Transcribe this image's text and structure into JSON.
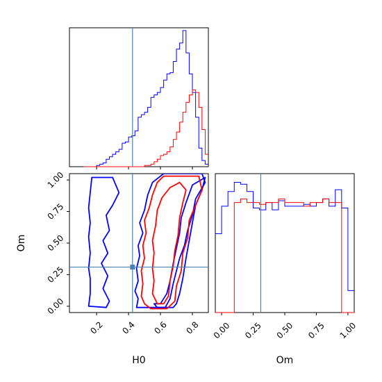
{
  "chart_data": [
    {
      "type": "histogram",
      "panel": "H0 marginal",
      "xlim": [
        0.03,
        0.9
      ],
      "bins": [
        0.12,
        0.14,
        0.16,
        0.18,
        0.2,
        0.22,
        0.24,
        0.26,
        0.28,
        0.3,
        0.32,
        0.34,
        0.36,
        0.38,
        0.4,
        0.42,
        0.44,
        0.46,
        0.48,
        0.5,
        0.52,
        0.54,
        0.56,
        0.58,
        0.6,
        0.62,
        0.64,
        0.66,
        0.68,
        0.7,
        0.72,
        0.74,
        0.76,
        0.78,
        0.8,
        0.82,
        0.84,
        0.86,
        0.88,
        0.9
      ],
      "series": [
        {
          "color": "#0000ff",
          "values": [
            0,
            0,
            0,
            0,
            1,
            2,
            3,
            6,
            8,
            10,
            12,
            14,
            19,
            20,
            24,
            25,
            29,
            40,
            42,
            44,
            48,
            56,
            58,
            60,
            64,
            70,
            75,
            76,
            85,
            95,
            100,
            110,
            92,
            75,
            60,
            40,
            15,
            5,
            2
          ]
        },
        {
          "color": "#ff0000",
          "values": [
            0,
            0,
            0,
            0,
            0,
            0,
            0,
            0,
            0,
            0,
            0,
            0,
            0,
            0,
            0,
            0,
            0,
            0,
            0,
            1,
            1,
            2,
            4,
            6,
            9,
            10,
            12,
            16,
            22,
            28,
            36,
            44,
            52,
            58,
            62,
            60,
            48,
            30,
            10
          ]
        }
      ],
      "truth_x": 0.425
    },
    {
      "type": "contour",
      "panel": "H0 vs Om",
      "xlabel": "H0",
      "ylabel": "Om",
      "xlim": [
        0.03,
        0.9
      ],
      "ylim": [
        -0.05,
        1.05
      ],
      "xticks": [
        "0.2",
        "0.4",
        "0.6",
        "0.8"
      ],
      "xtick_values": [
        0.2,
        0.4,
        0.6,
        0.8
      ],
      "yticks": [
        "0.00",
        "0.25",
        "0.50",
        "0.75",
        "1.00"
      ],
      "ytick_values": [
        0.0,
        0.25,
        0.5,
        0.75,
        1.0
      ],
      "truth": [
        0.425,
        0.31
      ],
      "contours": [
        {
          "color": "#0000ff",
          "points": [
            [
              0.15,
              0.0
            ],
            [
              0.16,
              0.1
            ],
            [
              0.16,
              0.22
            ],
            [
              0.15,
              0.3
            ],
            [
              0.16,
              0.42
            ],
            [
              0.15,
              0.55
            ],
            [
              0.16,
              0.66
            ],
            [
              0.15,
              0.78
            ],
            [
              0.16,
              0.9
            ],
            [
              0.17,
              1.02
            ],
            [
              0.3,
              1.02
            ],
            [
              0.34,
              0.9
            ],
            [
              0.3,
              0.8
            ],
            [
              0.26,
              0.72
            ],
            [
              0.28,
              0.6
            ],
            [
              0.24,
              0.52
            ],
            [
              0.27,
              0.42
            ],
            [
              0.23,
              0.34
            ],
            [
              0.27,
              0.24
            ],
            [
              0.24,
              0.14
            ],
            [
              0.28,
              0.04
            ],
            [
              0.26,
              -0.01
            ]
          ]
        },
        {
          "color": "#0000ff",
          "points": [
            [
              0.45,
              -0.01
            ],
            [
              0.46,
              0.06
            ],
            [
              0.44,
              0.12
            ],
            [
              0.46,
              0.2
            ],
            [
              0.45,
              0.3
            ],
            [
              0.47,
              0.4
            ],
            [
              0.46,
              0.48
            ],
            [
              0.49,
              0.58
            ],
            [
              0.47,
              0.66
            ],
            [
              0.5,
              0.76
            ],
            [
              0.52,
              0.88
            ],
            [
              0.55,
              0.98
            ],
            [
              0.62,
              1.05
            ],
            [
              0.86,
              1.05
            ],
            [
              0.88,
              0.98
            ],
            [
              0.82,
              0.85
            ],
            [
              0.8,
              0.72
            ],
            [
              0.77,
              0.6
            ],
            [
              0.75,
              0.48
            ],
            [
              0.72,
              0.38
            ],
            [
              0.7,
              0.28
            ],
            [
              0.68,
              0.18
            ],
            [
              0.66,
              0.06
            ],
            [
              0.63,
              -0.01
            ]
          ]
        },
        {
          "color": "#0000ff",
          "points": [
            [
              0.56,
              0.02
            ],
            [
              0.6,
              0.02
            ],
            [
              0.64,
              0.1
            ],
            [
              0.66,
              0.2
            ],
            [
              0.68,
              0.34
            ],
            [
              0.7,
              0.46
            ],
            [
              0.72,
              0.58
            ],
            [
              0.73,
              0.7
            ],
            [
              0.76,
              0.82
            ],
            [
              0.8,
              0.96
            ],
            [
              0.88,
              1.02
            ],
            [
              0.86,
              0.92
            ],
            [
              0.82,
              0.8
            ],
            [
              0.8,
              0.66
            ],
            [
              0.78,
              0.52
            ],
            [
              0.76,
              0.38
            ],
            [
              0.74,
              0.22
            ],
            [
              0.72,
              0.1
            ],
            [
              0.7,
              0.02
            ],
            [
              0.68,
              -0.01
            ],
            [
              0.58,
              -0.01
            ]
          ]
        },
        {
          "color": "#ff0000",
          "points": [
            [
              0.48,
              0.08
            ],
            [
              0.49,
              0.18
            ],
            [
              0.48,
              0.28
            ],
            [
              0.5,
              0.38
            ],
            [
              0.49,
              0.48
            ],
            [
              0.51,
              0.58
            ],
            [
              0.5,
              0.68
            ],
            [
              0.53,
              0.78
            ],
            [
              0.55,
              0.88
            ],
            [
              0.58,
              0.98
            ],
            [
              0.62,
              1.03
            ],
            [
              0.84,
              1.03
            ],
            [
              0.86,
              0.92
            ],
            [
              0.82,
              0.8
            ],
            [
              0.78,
              0.68
            ],
            [
              0.77,
              0.54
            ],
            [
              0.74,
              0.42
            ],
            [
              0.73,
              0.28
            ],
            [
              0.7,
              0.16
            ],
            [
              0.69,
              0.04
            ],
            [
              0.64,
              -0.02
            ],
            [
              0.54,
              -0.02
            ],
            [
              0.5,
              0.02
            ]
          ]
        },
        {
          "color": "#ff0000",
          "points": [
            [
              0.55,
              0.1
            ],
            [
              0.56,
              0.2
            ],
            [
              0.55,
              0.3
            ],
            [
              0.56,
              0.42
            ],
            [
              0.55,
              0.52
            ],
            [
              0.57,
              0.64
            ],
            [
              0.58,
              0.76
            ],
            [
              0.61,
              0.86
            ],
            [
              0.66,
              0.94
            ],
            [
              0.72,
              0.98
            ],
            [
              0.76,
              0.92
            ],
            [
              0.74,
              0.82
            ],
            [
              0.72,
              0.7
            ],
            [
              0.71,
              0.56
            ],
            [
              0.69,
              0.44
            ],
            [
              0.68,
              0.32
            ],
            [
              0.66,
              0.2
            ],
            [
              0.65,
              0.08
            ],
            [
              0.62,
              0.02
            ],
            [
              0.58,
              0.02
            ]
          ]
        }
      ]
    },
    {
      "type": "histogram",
      "panel": "Om marginal",
      "xlabel": "Om",
      "xlim": [
        -0.05,
        1.05
      ],
      "xticks": [
        "0.00",
        "0.25",
        "0.50",
        "0.75",
        "1.00"
      ],
      "xtick_values": [
        0.0,
        0.25,
        0.5,
        0.75,
        1.0
      ],
      "bins": [
        -0.05,
        0.0,
        0.05,
        0.1,
        0.15,
        0.2,
        0.25,
        0.3,
        0.35,
        0.4,
        0.45,
        0.5,
        0.55,
        0.6,
        0.65,
        0.7,
        0.75,
        0.8,
        0.85,
        0.9,
        0.95,
        1.0,
        1.05
      ],
      "series": [
        {
          "color": "#0000ff",
          "values": [
            43,
            58,
            66,
            71,
            70,
            66,
            57,
            56,
            60,
            56,
            61,
            58,
            58,
            58,
            59,
            58,
            60,
            62,
            58,
            67,
            57,
            12
          ]
        },
        {
          "color": "#ff0000",
          "values": [
            0,
            0,
            0,
            60,
            62,
            60,
            60,
            59,
            60,
            60,
            62,
            60,
            60,
            60,
            58,
            60,
            60,
            62,
            60,
            60,
            0,
            0
          ]
        }
      ],
      "truth_x": 0.31
    }
  ]
}
